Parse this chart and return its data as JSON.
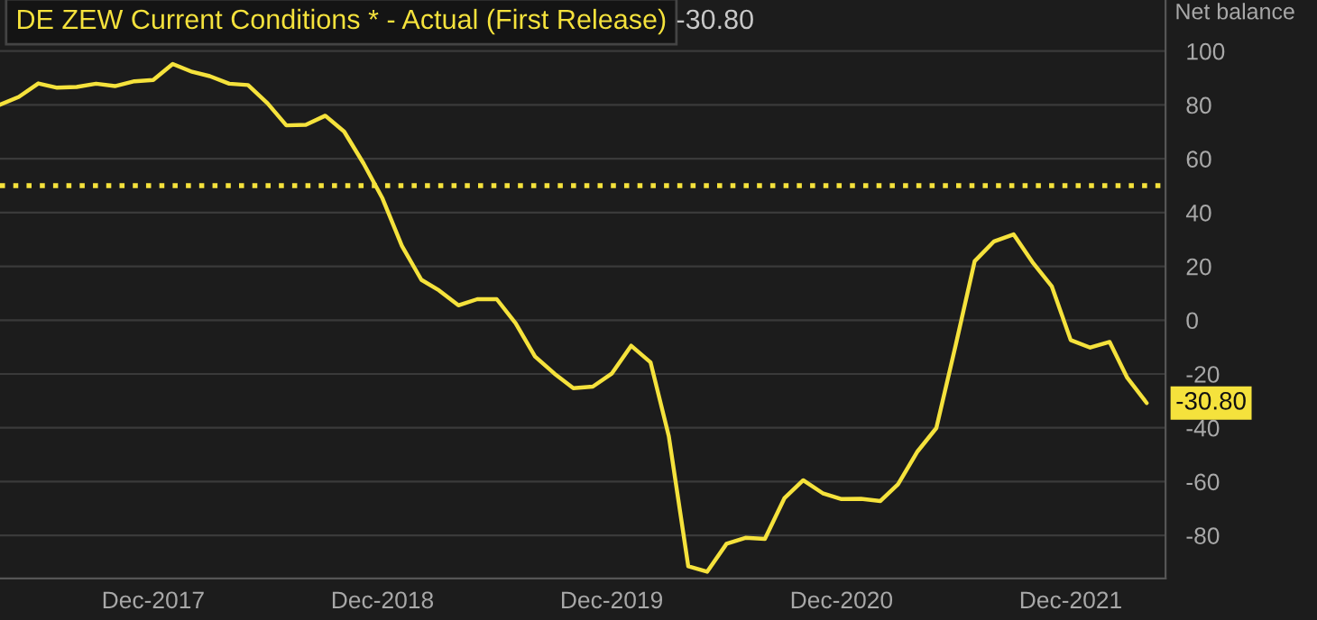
{
  "chart_data": {
    "type": "line",
    "title": "DE ZEW Current Conditions * - Actual (First Release)",
    "subtitle": "-30.80",
    "ylabel": "Net balance",
    "x": [
      "2017-04",
      "2017-05",
      "2017-06",
      "2017-07",
      "2017-08",
      "2017-09",
      "2017-10",
      "2017-11",
      "2017-12",
      "2018-01",
      "2018-02",
      "2018-03",
      "2018-04",
      "2018-05",
      "2018-06",
      "2018-07",
      "2018-08",
      "2018-09",
      "2018-10",
      "2018-11",
      "2018-12",
      "2019-01",
      "2019-02",
      "2019-03",
      "2019-04",
      "2019-05",
      "2019-06",
      "2019-07",
      "2019-08",
      "2019-09",
      "2019-10",
      "2019-11",
      "2019-12",
      "2020-01",
      "2020-02",
      "2020-03",
      "2020-04",
      "2020-05",
      "2020-06",
      "2020-07",
      "2020-08",
      "2020-09",
      "2020-10",
      "2020-11",
      "2020-12",
      "2021-01",
      "2021-02",
      "2021-03",
      "2021-04",
      "2021-05",
      "2021-06",
      "2021-07",
      "2021-08",
      "2021-09",
      "2021-10",
      "2021-11",
      "2021-12",
      "2022-01",
      "2022-02",
      "2022-03",
      "2022-04"
    ],
    "series": [
      {
        "color": "#f5e23c",
        "values": [
          80.1,
          83.0,
          88.0,
          86.4,
          86.7,
          87.9,
          87.0,
          88.8,
          89.3,
          95.2,
          92.3,
          90.7,
          87.9,
          87.4,
          80.6,
          72.4,
          72.6,
          76.0,
          70.1,
          58.2,
          45.3,
          27.6,
          15.0,
          11.1,
          5.5,
          7.8,
          7.8,
          -1.1,
          -13.5,
          -19.9,
          -25.3,
          -24.7,
          -19.9,
          -9.5,
          -15.7,
          -43.1,
          -91.5,
          -93.5,
          -83.1,
          -80.9,
          -81.3,
          -66.2,
          -59.5,
          -64.3,
          -66.5,
          -66.4,
          -67.2,
          -61.0,
          -48.8,
          -40.1,
          -9.1,
          21.9,
          29.3,
          31.9,
          21.6,
          12.5,
          -7.4,
          -10.2,
          -8.1,
          -21.4,
          -30.8
        ],
        "value_labels": [
          null,
          null,
          null,
          null,
          null,
          null,
          null,
          null,
          null,
          null,
          null,
          null,
          null,
          null,
          null,
          null,
          null,
          null,
          null,
          null,
          null,
          null,
          null,
          null,
          null,
          null,
          null,
          null,
          null,
          null,
          null,
          null,
          null,
          null,
          null,
          null,
          null,
          null,
          null,
          null,
          null,
          null,
          null,
          null,
          null,
          null,
          null,
          null,
          null,
          null,
          null,
          null,
          null,
          null,
          null,
          null,
          null,
          null,
          null,
          null,
          "-30.80"
        ]
      }
    ],
    "xlim": [
      "2017-04",
      "2022-05"
    ],
    "xticks": [
      {
        "value": "2017-12",
        "label": "Dec-2017"
      },
      {
        "value": "2018-12",
        "label": "Dec-2018"
      },
      {
        "value": "2019-12",
        "label": "Dec-2019"
      },
      {
        "value": "2020-12",
        "label": "Dec-2020"
      },
      {
        "value": "2021-12",
        "label": "Dec-2021"
      }
    ],
    "ylim": [
      -96,
      119
    ],
    "yticks": [
      100,
      80,
      60,
      40,
      20,
      0,
      -20,
      -40,
      -60,
      -80
    ],
    "ref_lines": [
      {
        "axis": "y",
        "value": 50,
        "color": "#f5e23c",
        "line_style": "dotted"
      }
    ],
    "grid": "y",
    "legend": false,
    "line_style": "solid",
    "marker": "none"
  }
}
